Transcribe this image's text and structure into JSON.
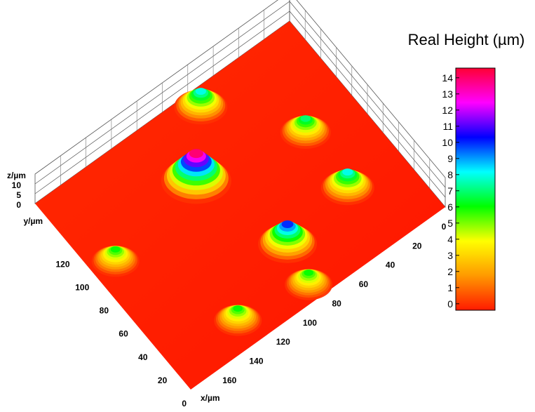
{
  "chart_data": {
    "type": "surface3d",
    "colorbar_title": "Real Height (µm)",
    "clim": [
      -0.4,
      14.6
    ],
    "cticks": [
      0,
      1,
      2,
      3,
      4,
      5,
      6,
      7,
      8,
      9,
      10,
      11,
      12,
      13,
      14
    ],
    "colormap": [
      "#ff1a00",
      "#ff9900",
      "#ffff00",
      "#00ff00",
      "#00ffff",
      "#0000ff",
      "#ff00ff",
      "#ff0033"
    ],
    "xlabel": "x/µm",
    "ylabel": "y/µm",
    "zlabel": "z/µm",
    "xlim": [
      0,
      190
    ],
    "ylim": [
      0,
      160
    ],
    "zlim": [
      0,
      15
    ],
    "xticks": [
      0,
      20,
      40,
      60,
      80,
      100,
      120,
      140,
      160
    ],
    "yticks": [
      0,
      20,
      40,
      60,
      80,
      100,
      120
    ],
    "zticks": [
      0,
      5,
      10
    ],
    "cells": [
      {
        "x": 106,
        "y": 110,
        "z": 14
      },
      {
        "x": 75,
        "y": 148,
        "z": 8
      },
      {
        "x": 36,
        "y": 94,
        "z": 7
      },
      {
        "x": 38,
        "y": 48,
        "z": 8
      },
      {
        "x": 88,
        "y": 41,
        "z": 10
      },
      {
        "x": 94,
        "y": 11,
        "z": 6
      },
      {
        "x": 141,
        "y": 19,
        "z": 6
      },
      {
        "x": 175,
        "y": 98,
        "z": 6
      }
    ]
  }
}
